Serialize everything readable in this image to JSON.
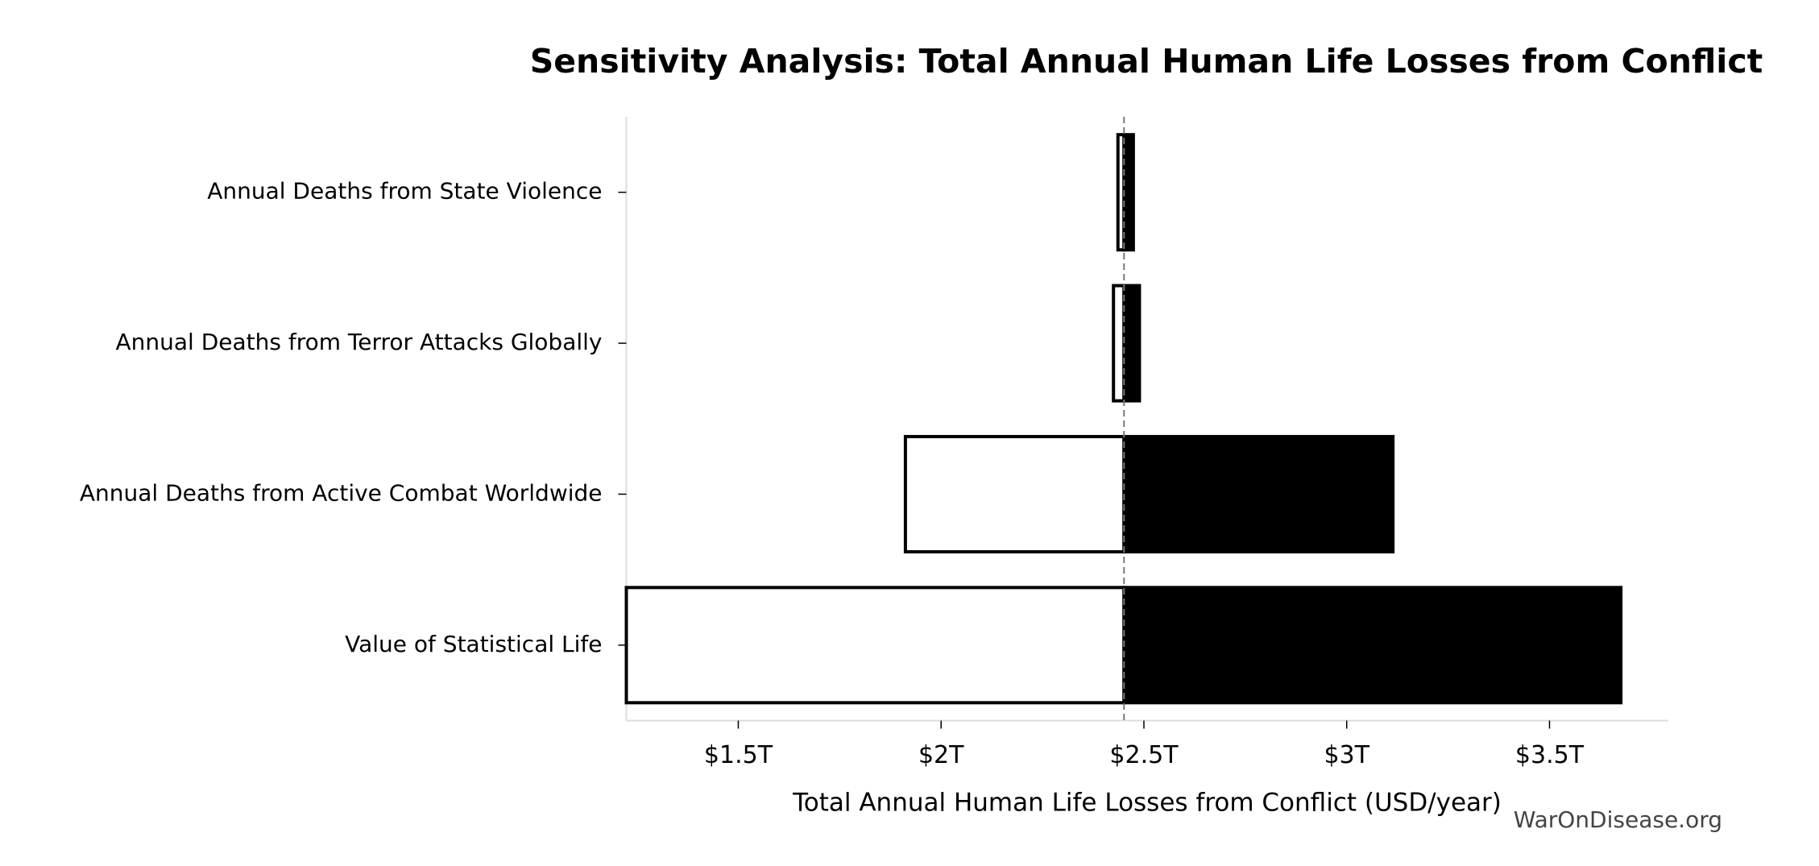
{
  "chart_data": {
    "type": "tornado",
    "title": "Sensitivity Analysis: Total Annual Human Life Losses from Conflict",
    "xlabel": "Total Annual Human Life Losses from Conflict (USD/year)",
    "watermark": "WarOnDisease.org",
    "categories": [
      "Annual Deaths from State Violence",
      "Annual Deaths from Terror Attacks Globally",
      "Annual Deaths from Active Combat Worldwide",
      "Value of Statistical Life"
    ],
    "baseline": 2451000000000,
    "low": [
      2436000000000,
      2425000000000,
      1912000000000,
      1224000000000
    ],
    "high": [
      2474000000000,
      2489000000000,
      3114000000000,
      3676000000000
    ],
    "low_color": "#ffffff",
    "high_color": "#000000",
    "xlim": [
      1224000000000,
      3793000000000
    ],
    "xticks": [
      {
        "value": 1500000000000,
        "label": "$1.5T"
      },
      {
        "value": 2000000000000,
        "label": "$2T"
      },
      {
        "value": 2500000000000,
        "label": "$2.5T"
      },
      {
        "value": 3000000000000,
        "label": "$3T"
      },
      {
        "value": 3500000000000,
        "label": "$3.5T"
      }
    ]
  }
}
